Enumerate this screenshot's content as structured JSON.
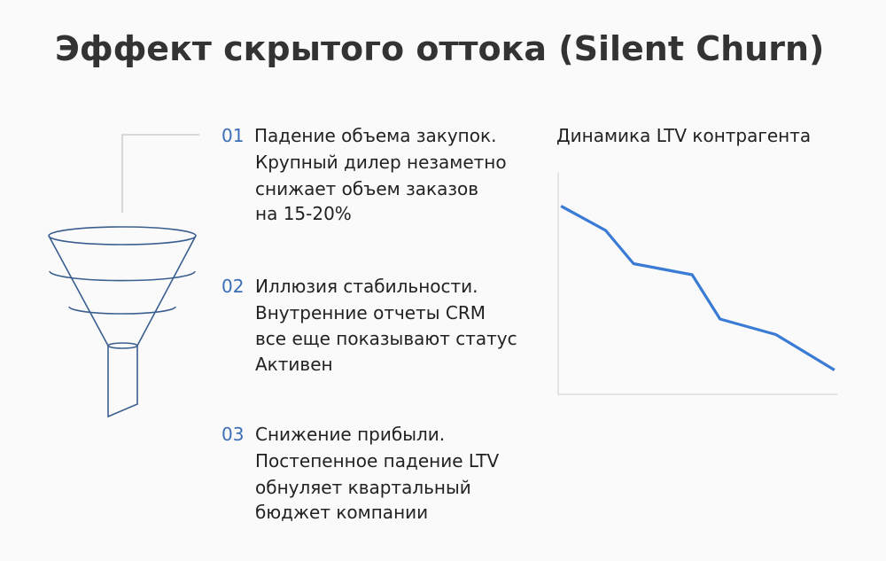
{
  "title": "Эффект скрытого оттока (Silent Churn)",
  "items": [
    {
      "number": "01",
      "heading": "Падение объема закупок.",
      "lines": [
        "Крупный дилер незаметно",
        "снижает объем заказов",
        "на 15-20%"
      ]
    },
    {
      "number": "02",
      "heading": "Иллюзия стабильности.",
      "lines": [
        "Внутренние отчеты CRM",
        "все еще показывают статус",
        "Активен"
      ]
    },
    {
      "number": "03",
      "heading": "Снижение прибыли.",
      "lines": [
        "Постепенное падение LTV",
        "обнуляет квартальный",
        "бюджет компании"
      ]
    }
  ],
  "chart_data": {
    "type": "line",
    "title": "Динамика LTV контрагента",
    "x": [
      1,
      17,
      27,
      48,
      58,
      78,
      99
    ],
    "values": [
      85,
      74,
      59,
      54,
      34,
      27,
      11
    ],
    "xlim": [
      0,
      100
    ],
    "ylim": [
      0,
      100
    ],
    "color": "#3a7bd5"
  }
}
